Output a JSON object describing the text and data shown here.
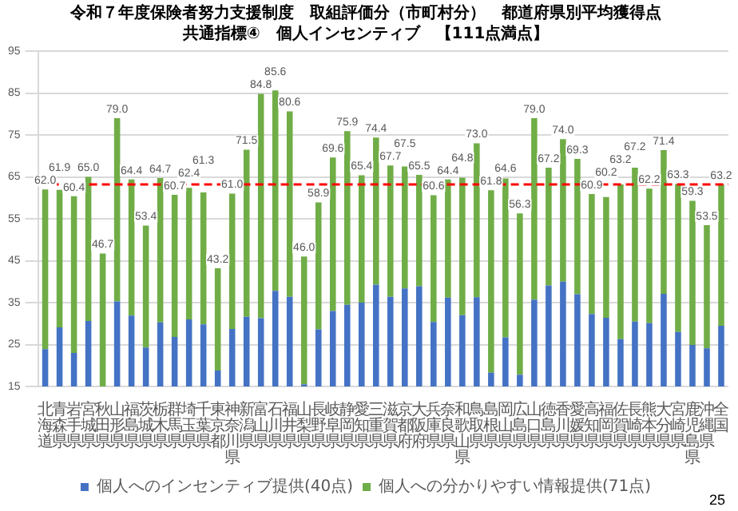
{
  "chart_data": {
    "type": "bar",
    "title": "令和７年度保険者努力支援制度　取組評価分（市町村分）　都道府県別平均獲得点",
    "subtitle": "共通指標④　個人インセンティブ　【111点満点】",
    "categories": [
      "北海道",
      "青森県",
      "岩手県",
      "宮城県",
      "秋田県",
      "山形県",
      "福島県",
      "茨城県",
      "栃木県",
      "群馬県",
      "埼玉県",
      "千葉県",
      "東京都",
      "神奈川県",
      "新潟県",
      "富山県",
      "石川県",
      "福井県",
      "山梨県",
      "長野県",
      "岐阜県",
      "静岡県",
      "愛知県",
      "三重県",
      "滋賀県",
      "京都府",
      "大阪府",
      "兵庫県",
      "奈良県",
      "和歌山県",
      "鳥取県",
      "島根県",
      "岡山県",
      "広島県",
      "山口県",
      "徳島県",
      "香川県",
      "愛媛県",
      "高知県",
      "福岡県",
      "佐賀県",
      "長崎県",
      "熊本県",
      "大分県",
      "宮崎県",
      "鹿児島県",
      "沖縄県",
      "全国"
    ],
    "series": [
      {
        "name": "個人へのインセンティブ提供(40点)",
        "color": "#4472c4",
        "values": [
          23.9,
          29.1,
          23.0,
          30.6,
          null,
          35.3,
          31.9,
          24.3,
          30.3,
          26.8,
          31.0,
          29.8,
          18.8,
          28.7,
          31.6,
          31.3,
          37.8,
          36.4,
          15.5,
          28.6,
          33.0,
          34.5,
          35.0,
          39.3,
          36.4,
          38.4,
          38.9,
          30.4,
          36.2,
          32.0,
          36.3,
          18.3,
          26.7,
          17.8,
          35.7,
          39.1,
          40.0,
          37.0,
          32.3,
          31.4,
          26.3,
          30.5,
          30.1,
          37.1,
          28.0,
          24.9,
          24.1,
          29.5
        ]
      },
      {
        "name": "個人への分かりやすい情報提供(71点)",
        "color": "#70ad47",
        "values": [
          38.1,
          32.8,
          37.4,
          34.4,
          46.7,
          43.7,
          32.5,
          29.1,
          34.4,
          33.9,
          31.4,
          31.5,
          24.4,
          32.3,
          39.9,
          53.5,
          47.8,
          44.2,
          30.5,
          30.3,
          36.6,
          41.4,
          30.4,
          35.1,
          31.3,
          29.1,
          26.6,
          30.2,
          28.2,
          32.8,
          36.7,
          43.5,
          37.9,
          38.5,
          43.3,
          28.1,
          34.0,
          32.3,
          28.6,
          28.8,
          36.9,
          36.7,
          32.1,
          34.3,
          35.3,
          34.4,
          29.4,
          33.7
        ]
      }
    ],
    "totals": [
      "62.0",
      "61.9",
      "60.4",
      "65.0",
      "46.7",
      "79.0",
      "64.4",
      "53.4",
      "64.7",
      "60.7",
      "62.4",
      "61.3",
      "43.2",
      "61.0",
      "71.5",
      "84.8",
      "85.6",
      "80.6",
      "46.0",
      "58.9",
      "69.6",
      "75.9",
      "65.4",
      "74.4",
      "67.7",
      "67.5",
      "65.5",
      "60.6",
      "64.4",
      "64.8",
      "73.0",
      "61.8",
      "64.6",
      "56.3",
      "79.0",
      "67.2",
      "74.0",
      "69.3",
      "60.9",
      "60.2",
      "63.2",
      "67.2",
      "62.2",
      "71.4",
      "63.3",
      "59.3",
      "53.5",
      "63.2"
    ],
    "stacked": true,
    "ylim": [
      15,
      95
    ],
    "yticks": [
      15,
      25,
      35,
      45,
      55,
      65,
      75,
      85,
      95
    ],
    "grid": "y",
    "legend": "bottom",
    "ref_lines": [
      {
        "axis": "y",
        "value": 63.2,
        "color": "#ff0000",
        "line_style": "dashed"
      }
    ],
    "annotations": [
      "25"
    ]
  }
}
